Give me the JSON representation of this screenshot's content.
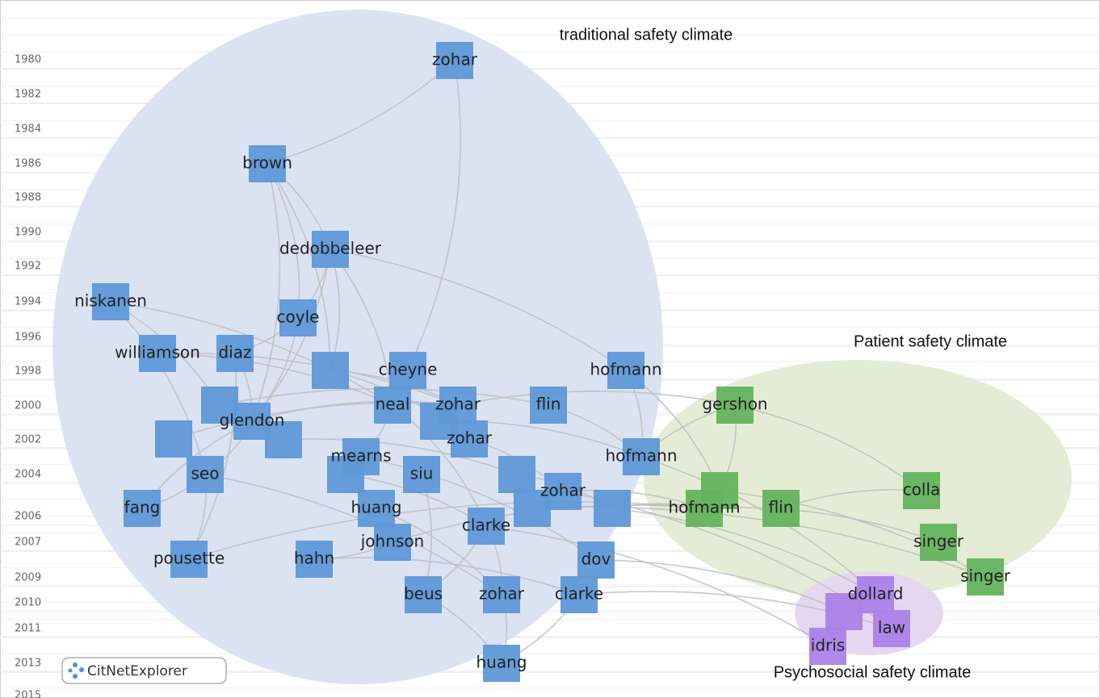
{
  "years": [
    "1980",
    "1982",
    "1984",
    "1986",
    "1988",
    "1990",
    "1992",
    "1994",
    "1996",
    "1998",
    "2000",
    "2002",
    "2004",
    "2006",
    "2007",
    "2009",
    "2010",
    "2011",
    "2013",
    "2015"
  ],
  "clusters": [
    "traditional  safety climate",
    "Patient safety climate",
    "Psychosocial safety climate"
  ],
  "nodes": [
    "zohar",
    "brown",
    "dedobbeleer",
    "niskanen",
    "coyle",
    "williamson",
    "diaz",
    "cheyne",
    "hofmann",
    "glendon",
    "neal",
    "zohar",
    "flin",
    "zohar",
    "mearns",
    "hofmann",
    "seo",
    "siu",
    "zohar",
    "fang",
    "huang",
    "clarke",
    "johnson",
    "dov",
    "pousette",
    "hahn",
    "beus",
    "zohar",
    "clarke",
    "huang",
    "gershon",
    "hofmann",
    "flin",
    "colla",
    "singer",
    "singer",
    "dollard",
    "law",
    "idris"
  ],
  "logo": "CitNetExplorer"
}
